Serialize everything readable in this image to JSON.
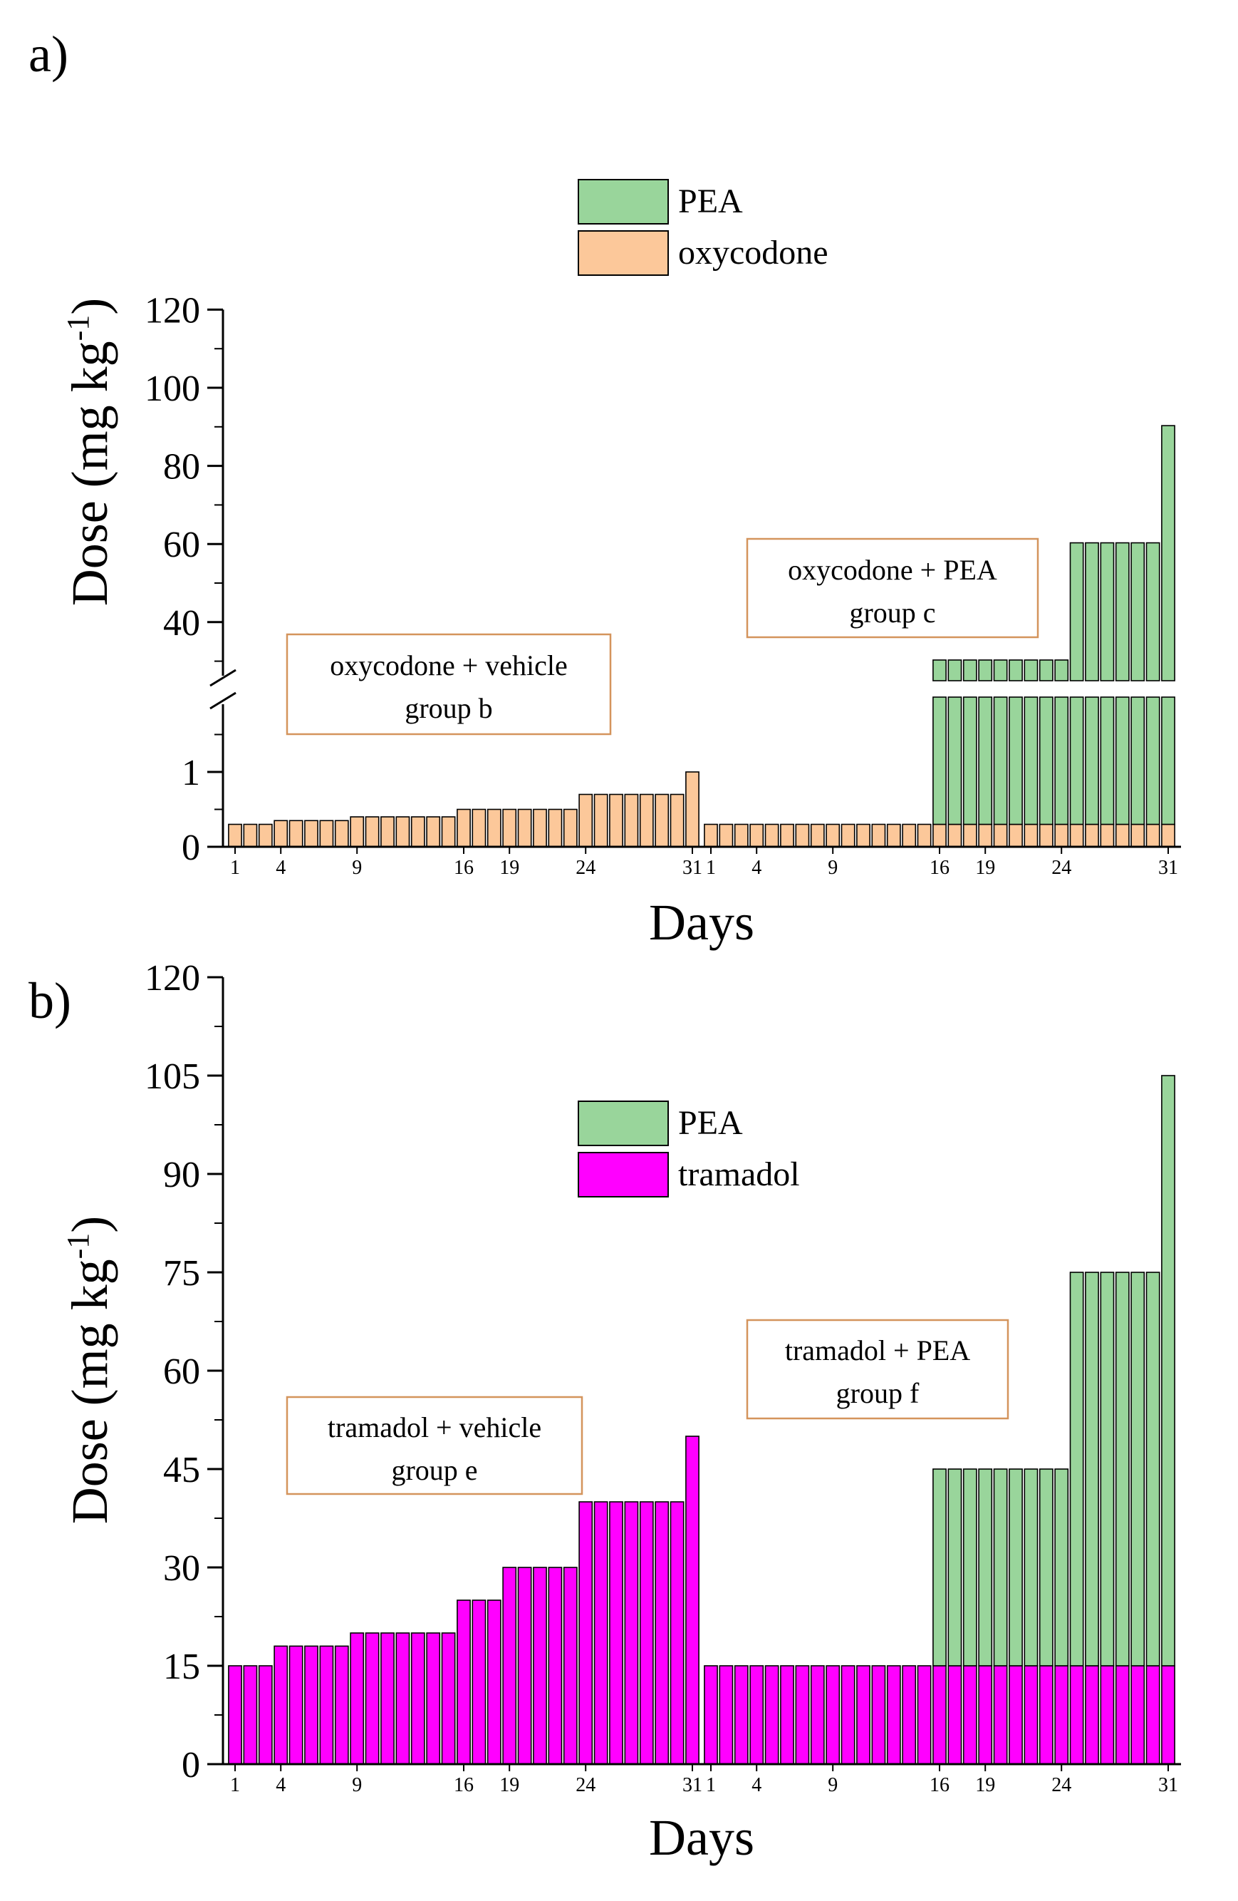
{
  "chart_data": [
    {
      "type": "bar",
      "panel_label": "a)",
      "ylabel": "Dose (mg kg",
      "ylabel_sup": "-1",
      "ylabel_close": ")",
      "xlabel": "Days",
      "y_axis_break": {
        "lower_range": [
          0,
          2
        ],
        "upper_range": [
          25,
          120
        ]
      },
      "yticks_lower": [
        "0",
        "1"
      ],
      "yticks_upper": [
        "40",
        "60",
        "80",
        "100",
        "120"
      ],
      "xtick_labels": [
        "1",
        "4",
        "9",
        "16",
        "19",
        "24",
        "31",
        "1",
        "4",
        "9",
        "16",
        "19",
        "24",
        "31"
      ],
      "legend": [
        {
          "name": "PEA",
          "color": "#99d59b"
        },
        {
          "name": "oxycodone",
          "color": "#fcc89a"
        }
      ],
      "annotations": [
        {
          "line1": "oxycodone + vehicle",
          "line2": "group b"
        },
        {
          "line1": "oxycodone + PEA",
          "line2": "group c"
        }
      ],
      "groups": [
        {
          "name": "oxycodone + vehicle (group b)",
          "days": [
            1,
            2,
            3,
            4,
            5,
            6,
            7,
            8,
            9,
            10,
            11,
            12,
            13,
            14,
            15,
            16,
            17,
            18,
            19,
            20,
            21,
            22,
            23,
            24,
            25,
            26,
            27,
            28,
            29,
            30,
            31
          ],
          "series": [
            {
              "name": "oxycodone",
              "values": [
                0.3,
                0.3,
                0.3,
                0.35,
                0.35,
                0.35,
                0.35,
                0.35,
                0.4,
                0.4,
                0.4,
                0.4,
                0.4,
                0.4,
                0.4,
                0.5,
                0.5,
                0.5,
                0.5,
                0.5,
                0.5,
                0.5,
                0.5,
                0.7,
                0.7,
                0.7,
                0.7,
                0.7,
                0.7,
                0.7,
                1.0
              ]
            }
          ]
        },
        {
          "name": "oxycodone + PEA (group c)",
          "days": [
            1,
            2,
            3,
            4,
            5,
            6,
            7,
            8,
            9,
            10,
            11,
            12,
            13,
            14,
            15,
            16,
            17,
            18,
            19,
            20,
            21,
            22,
            23,
            24,
            25,
            26,
            27,
            28,
            29,
            30,
            31
          ],
          "series": [
            {
              "name": "oxycodone",
              "values": [
                0.3,
                0.3,
                0.3,
                0.3,
                0.3,
                0.3,
                0.3,
                0.3,
                0.3,
                0.3,
                0.3,
                0.3,
                0.3,
                0.3,
                0.3,
                0.3,
                0.3,
                0.3,
                0.3,
                0.3,
                0.3,
                0.3,
                0.3,
                0.3,
                0.3,
                0.3,
                0.3,
                0.3,
                0.3,
                0.3,
                0.3
              ]
            },
            {
              "name": "PEA",
              "values": [
                0,
                0,
                0,
                0,
                0,
                0,
                0,
                0,
                0,
                0,
                0,
                0,
                0,
                0,
                0,
                30,
                30,
                30,
                30,
                30,
                30,
                30,
                30,
                30,
                60,
                60,
                60,
                60,
                60,
                60,
                90
              ]
            }
          ]
        }
      ]
    },
    {
      "type": "bar",
      "panel_label": "b)",
      "ylabel": "Dose (mg kg",
      "ylabel_sup": "-1",
      "ylabel_close": ")",
      "xlabel": "Days",
      "ylim": [
        0,
        120
      ],
      "yticks": [
        "0",
        "15",
        "30",
        "45",
        "60",
        "75",
        "90",
        "105",
        "120"
      ],
      "xtick_labels": [
        "1",
        "4",
        "9",
        "16",
        "19",
        "24",
        "31",
        "1",
        "4",
        "9",
        "16",
        "19",
        "24",
        "31"
      ],
      "legend": [
        {
          "name": "PEA",
          "color": "#99d59b"
        },
        {
          "name": "tramadol",
          "color": "#ff00ff"
        }
      ],
      "annotations": [
        {
          "line1": "tramadol + vehicle",
          "line2": "group e"
        },
        {
          "line1": "tramadol + PEA",
          "line2": "group f"
        }
      ],
      "groups": [
        {
          "name": "tramadol + vehicle (group e)",
          "days": [
            1,
            2,
            3,
            4,
            5,
            6,
            7,
            8,
            9,
            10,
            11,
            12,
            13,
            14,
            15,
            16,
            17,
            18,
            19,
            20,
            21,
            22,
            23,
            24,
            25,
            26,
            27,
            28,
            29,
            30,
            31
          ],
          "series": [
            {
              "name": "tramadol",
              "values": [
                15,
                15,
                15,
                18,
                18,
                18,
                18,
                18,
                20,
                20,
                20,
                20,
                20,
                20,
                20,
                25,
                25,
                25,
                30,
                30,
                30,
                30,
                30,
                40,
                40,
                40,
                40,
                40,
                40,
                40,
                50
              ]
            }
          ]
        },
        {
          "name": "tramadol + PEA (group f)",
          "days": [
            1,
            2,
            3,
            4,
            5,
            6,
            7,
            8,
            9,
            10,
            11,
            12,
            13,
            14,
            15,
            16,
            17,
            18,
            19,
            20,
            21,
            22,
            23,
            24,
            25,
            26,
            27,
            28,
            29,
            30,
            31
          ],
          "series": [
            {
              "name": "tramadol",
              "values": [
                15,
                15,
                15,
                15,
                15,
                15,
                15,
                15,
                15,
                15,
                15,
                15,
                15,
                15,
                15,
                15,
                15,
                15,
                15,
                15,
                15,
                15,
                15,
                15,
                15,
                15,
                15,
                15,
                15,
                15,
                15
              ]
            },
            {
              "name": "PEA",
              "values": [
                0,
                0,
                0,
                0,
                0,
                0,
                0,
                0,
                0,
                0,
                0,
                0,
                0,
                0,
                0,
                30,
                30,
                30,
                30,
                30,
                30,
                30,
                30,
                30,
                60,
                60,
                60,
                60,
                60,
                60,
                90
              ]
            }
          ]
        }
      ]
    }
  ]
}
